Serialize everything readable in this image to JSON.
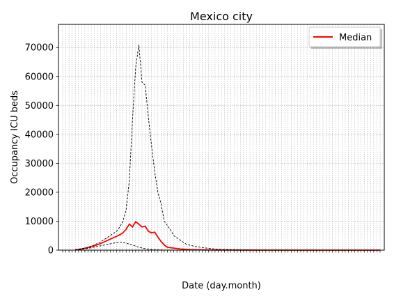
{
  "chart_data": {
    "type": "line",
    "title": "Mexico city",
    "xlabel": "Date (day.month)",
    "ylabel": "Occupancy ICU beds",
    "ylim": [
      0,
      78000
    ],
    "yticks": [
      0,
      10000,
      20000,
      30000,
      40000,
      50000,
      60000,
      70000
    ],
    "ytick_labels": [
      "0",
      "10000",
      "20000",
      "30000",
      "40000",
      "50000",
      "60000",
      "70000"
    ],
    "x_index_range": [
      0,
      100
    ],
    "grid": "dotted, both axes",
    "legend": {
      "placement": "top-right",
      "entries": [
        {
          "label": "Median",
          "color": "#ff0000"
        }
      ]
    },
    "series": [
      {
        "name": "Median",
        "color": "#ff0000",
        "style": "solid",
        "points": [
          [
            4,
            100
          ],
          [
            6,
            400
          ],
          [
            8,
            900
          ],
          [
            10,
            1500
          ],
          [
            12,
            2300
          ],
          [
            14,
            3300
          ],
          [
            16,
            4300
          ],
          [
            18,
            5300
          ],
          [
            19,
            6000
          ],
          [
            20,
            7200
          ],
          [
            21,
            9000
          ],
          [
            22,
            8000
          ],
          [
            23,
            9800
          ],
          [
            24,
            9000
          ],
          [
            25,
            8000
          ],
          [
            26,
            8300
          ],
          [
            27,
            6500
          ],
          [
            28,
            6000
          ],
          [
            29,
            6200
          ],
          [
            30,
            4500
          ],
          [
            31,
            3000
          ],
          [
            32,
            1800
          ],
          [
            33,
            1000
          ],
          [
            35,
            700
          ],
          [
            37,
            400
          ],
          [
            40,
            200
          ],
          [
            45,
            80
          ],
          [
            50,
            30
          ],
          [
            60,
            10
          ],
          [
            100,
            0
          ]
        ]
      },
      {
        "name": "",
        "color": "#000000",
        "style": "dashed",
        "points": [
          [
            4,
            200
          ],
          [
            6,
            500
          ],
          [
            8,
            1000
          ],
          [
            10,
            1800
          ],
          [
            12,
            2900
          ],
          [
            14,
            4300
          ],
          [
            16,
            5800
          ],
          [
            17,
            6500
          ],
          [
            18,
            8000
          ],
          [
            19,
            10000
          ],
          [
            20,
            14000
          ],
          [
            21,
            24000
          ],
          [
            22,
            45000
          ],
          [
            23,
            63000
          ],
          [
            24,
            71000
          ],
          [
            25,
            58000
          ],
          [
            26,
            57000
          ],
          [
            27,
            46000
          ],
          [
            28,
            36000
          ],
          [
            29,
            27000
          ],
          [
            30,
            20000
          ],
          [
            31,
            16000
          ],
          [
            32,
            10000
          ],
          [
            33,
            8500
          ],
          [
            34,
            7000
          ],
          [
            35,
            5000
          ],
          [
            37,
            3500
          ],
          [
            39,
            2000
          ],
          [
            42,
            1200
          ],
          [
            46,
            600
          ],
          [
            50,
            250
          ],
          [
            60,
            60
          ],
          [
            80,
            10
          ],
          [
            100,
            0
          ]
        ]
      },
      {
        "name": "",
        "color": "#000000",
        "style": "dashed",
        "points": [
          [
            4,
            50
          ],
          [
            8,
            600
          ],
          [
            12,
            1500
          ],
          [
            16,
            2400
          ],
          [
            18,
            2800
          ],
          [
            20,
            2400
          ],
          [
            22,
            1800
          ],
          [
            24,
            1000
          ],
          [
            26,
            500
          ],
          [
            28,
            200
          ],
          [
            32,
            50
          ],
          [
            40,
            0
          ],
          [
            100,
            0
          ]
        ]
      }
    ]
  }
}
